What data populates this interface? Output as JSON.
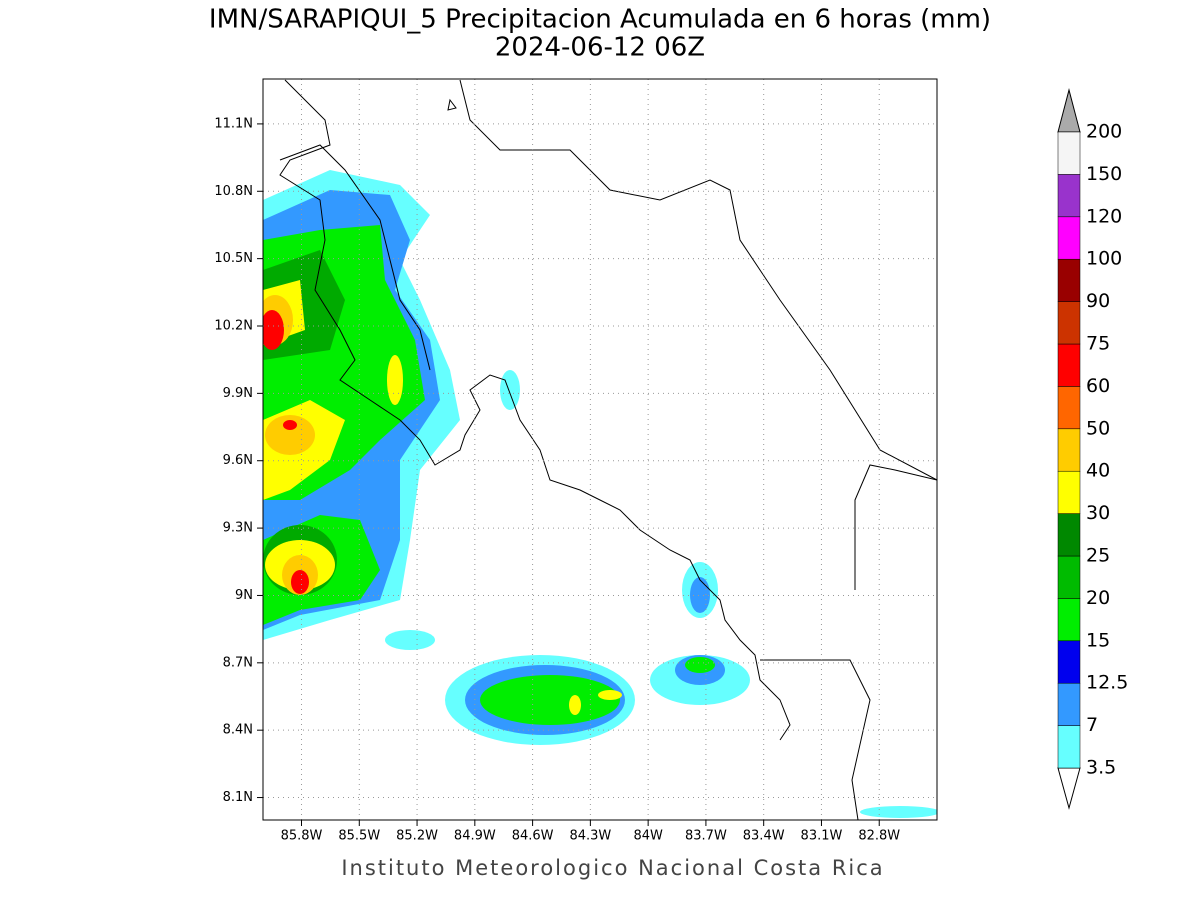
{
  "chart_data": {
    "type": "map",
    "title": "IMN/SARAPIQUI_5 Precipitacion Acumulada en 6 horas (mm)",
    "subtitle": "2024-06-12 06Z",
    "footer": "Instituto Meteorologico Nacional Costa Rica",
    "xlim": [
      -86.0,
      -82.5
    ],
    "ylim": [
      8.0,
      11.3
    ],
    "grid": true,
    "xticks": [
      {
        "value": -85.8,
        "label": "85.8W"
      },
      {
        "value": -85.5,
        "label": "85.5W"
      },
      {
        "value": -85.2,
        "label": "85.2W"
      },
      {
        "value": -84.9,
        "label": "84.9W"
      },
      {
        "value": -84.6,
        "label": "84.6W"
      },
      {
        "value": -84.3,
        "label": "84.3W"
      },
      {
        "value": -84.0,
        "label": "84W"
      },
      {
        "value": -83.7,
        "label": "83.7W"
      },
      {
        "value": -83.4,
        "label": "83.4W"
      },
      {
        "value": -83.1,
        "label": "83.1W"
      },
      {
        "value": -82.8,
        "label": "82.8W"
      }
    ],
    "yticks": [
      {
        "value": 8.1,
        "label": "8.1N"
      },
      {
        "value": 8.4,
        "label": "8.4N"
      },
      {
        "value": 8.7,
        "label": "8.7N"
      },
      {
        "value": 9.0,
        "label": "9N"
      },
      {
        "value": 9.3,
        "label": "9.3N"
      },
      {
        "value": 9.6,
        "label": "9.6N"
      },
      {
        "value": 9.9,
        "label": "9.9N"
      },
      {
        "value": 10.2,
        "label": "10.2N"
      },
      {
        "value": 10.5,
        "label": "10.5N"
      },
      {
        "value": 10.8,
        "label": "10.8N"
      },
      {
        "value": 11.1,
        "label": "11.1N"
      }
    ],
    "colorbar": {
      "levels": [
        3.5,
        7,
        12.5,
        15,
        20,
        25,
        30,
        40,
        50,
        60,
        75,
        90,
        100,
        120,
        150,
        200
      ],
      "colors": [
        "#ffffff",
        "#66ffff",
        "#3399ff",
        "#0000ee",
        "#00ee00",
        "#00bb00",
        "#008800",
        "#ffff00",
        "#ffcc00",
        "#ff6600",
        "#ff0000",
        "#cc3300",
        "#990000",
        "#ff00ff",
        "#9933cc",
        "#f5f5f5",
        "#aaaaaa"
      ]
    }
  }
}
